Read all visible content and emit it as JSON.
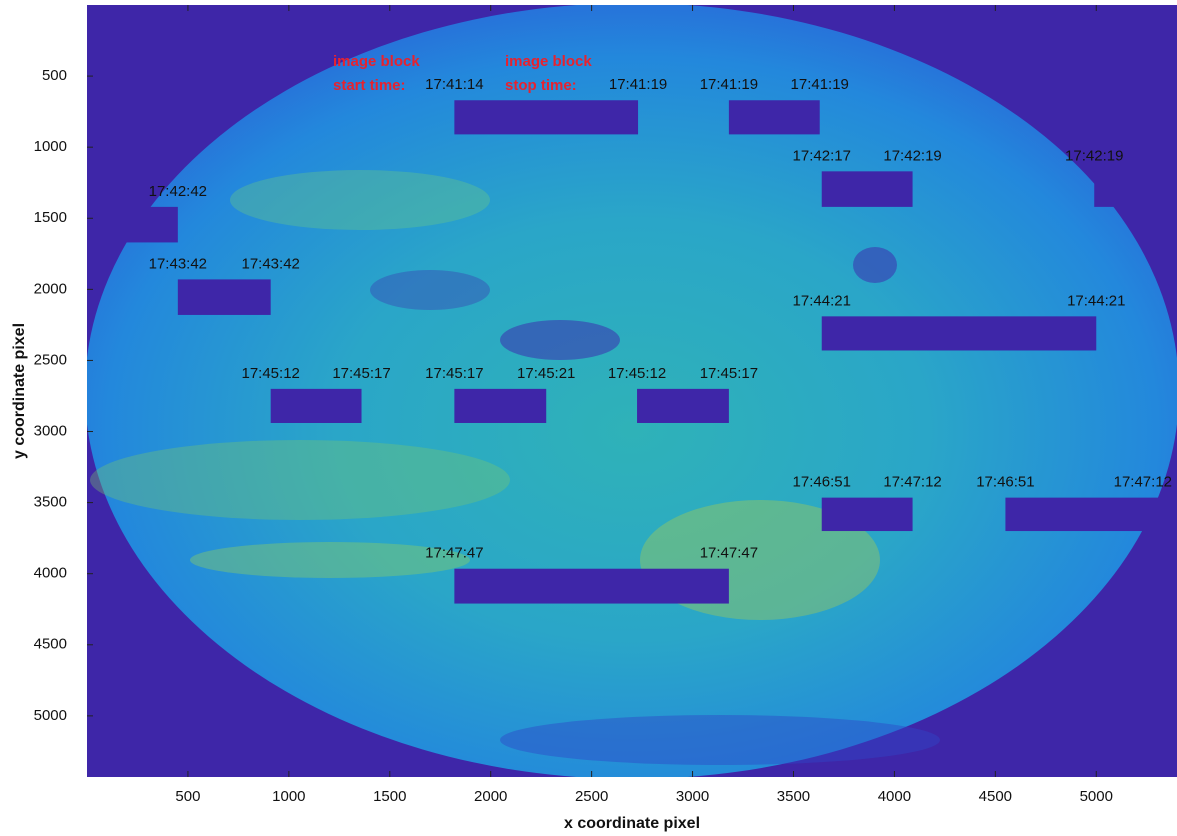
{
  "chart_data": {
    "type": "image-blocks",
    "xlabel": "x coordinate pixel",
    "ylabel": "y coordinate pixel",
    "xlim": [
      0,
      5400
    ],
    "ylim": [
      0,
      5430
    ],
    "y_direction": "reverse",
    "xticks": [
      500,
      1000,
      1500,
      2000,
      2500,
      3000,
      3500,
      4000,
      4500,
      5000
    ],
    "yticks": [
      500,
      1000,
      1500,
      2000,
      2500,
      3000,
      3500,
      4000,
      4500,
      5000
    ],
    "block_color": "#3e26a8",
    "annotations": [
      [
        "image block",
        "start time:"
      ],
      [
        "image block",
        "stop time:"
      ]
    ],
    "blocks": [
      {
        "x0": 1820,
        "x1": 2730,
        "y0": 670,
        "y1": 910,
        "start": "17:41:14",
        "stop": "17:41:19"
      },
      {
        "x0": 3180,
        "x1": 3630,
        "y0": 670,
        "y1": 910,
        "start": "17:41:19",
        "stop": "17:41:19"
      },
      {
        "x0": 3640,
        "x1": 4090,
        "y0": 1170,
        "y1": 1420,
        "start": "17:42:17",
        "stop": "17:42:19"
      },
      {
        "x0": 4990,
        "x1": 5400,
        "y0": 1170,
        "y1": 1420,
        "start": "17:42:19"
      },
      {
        "x0": 0,
        "x1": 450,
        "y0": 1420,
        "y1": 1670,
        "stop": "17:42:42"
      },
      {
        "x0": 450,
        "x1": 910,
        "y0": 1930,
        "y1": 2180,
        "start": "17:43:42",
        "stop": "17:43:42"
      },
      {
        "x0": 3640,
        "x1": 5000,
        "y0": 2190,
        "y1": 2430,
        "start": "17:44:21",
        "stop": "17:44:21"
      },
      {
        "x0": 910,
        "x1": 1360,
        "y0": 2700,
        "y1": 2940,
        "start": "17:45:12",
        "stop": "17:45:17"
      },
      {
        "x0": 1820,
        "x1": 2275,
        "y0": 2700,
        "y1": 2940,
        "start": "17:45:17",
        "stop": "17:45:21"
      },
      {
        "x0": 2725,
        "x1": 3180,
        "y0": 2700,
        "y1": 2940,
        "start": "17:45:12",
        "stop": "17:45:17"
      },
      {
        "x0": 3640,
        "x1": 4090,
        "y0": 3465,
        "y1": 3700,
        "start": "17:46:51",
        "stop": "17:47:12"
      },
      {
        "x0": 4550,
        "x1": 5400,
        "y0": 3465,
        "y1": 3700,
        "start": "17:46:51",
        "stop": "17:47:12"
      },
      {
        "x0": 1820,
        "x1": 3180,
        "y0": 3965,
        "y1": 4210,
        "start": "17:47:47",
        "stop": "17:47:47"
      }
    ]
  }
}
